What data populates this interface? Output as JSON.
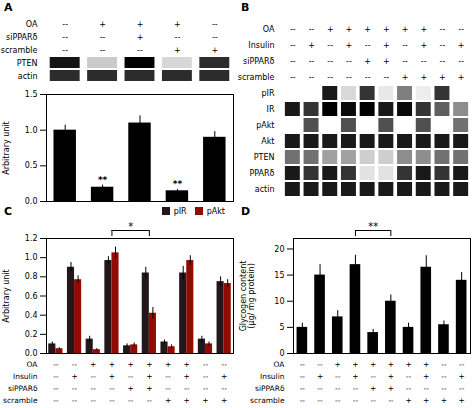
{
  "chart_data": [
    {
      "type": "blot",
      "title": "A",
      "conditions": [
        {
          "name": "OA",
          "values": [
            "--",
            "+",
            "+",
            "+",
            "--"
          ]
        },
        {
          "name": "siPPARδ",
          "values": [
            "--",
            "--",
            "+",
            "--",
            "--"
          ]
        },
        {
          "name": "scramble",
          "values": [
            "--",
            "--",
            "--",
            "+",
            "+"
          ]
        }
      ],
      "rows": [
        "PTEN",
        "actin"
      ],
      "cells": [
        [
          0.65,
          0.22,
          0.7,
          0.18,
          0.6
        ],
        [
          0.6,
          0.6,
          0.6,
          0.6,
          0.6
        ]
      ]
    },
    {
      "type": "bar",
      "categories": [
        null,
        null,
        null,
        null,
        null
      ],
      "values": [
        1.0,
        0.2,
        1.1,
        0.15,
        0.9
      ],
      "errors": [
        0.07,
        0.03,
        0.1,
        0.02,
        0.08
      ],
      "ylabel": "Arbitrary unit",
      "ylim": [
        0,
        1.5
      ],
      "yticks": [
        {
          "value": 0,
          "label": "0.0"
        },
        0.5,
        {
          "value": 1.0,
          "label": "1.0"
        },
        1.5
      ],
      "annotations": [
        {
          "index": 1,
          "text": "**"
        },
        {
          "index": 3,
          "text": "**"
        }
      ]
    },
    {
      "type": "blot",
      "title": "B",
      "conditions": [
        {
          "name": "OA",
          "values": [
            "--",
            "--",
            "+",
            "+",
            "+",
            "+",
            "+",
            "+",
            "--",
            "--"
          ]
        },
        {
          "name": "Insulin",
          "values": [
            "--",
            "+",
            "--",
            "+",
            "--",
            "+",
            "--",
            "+",
            "--",
            "+"
          ]
        },
        {
          "name": "siPPARδ",
          "values": [
            "--",
            "--",
            "--",
            "--",
            "+",
            "+",
            "--",
            "--",
            "--",
            "--"
          ]
        },
        {
          "name": "scramble",
          "values": [
            "--",
            "--",
            "--",
            "--",
            "--",
            "--",
            "+",
            "+",
            "+",
            "+"
          ]
        }
      ],
      "rows": [
        "pIR",
        "IR",
        "pAkt",
        "Akt",
        "PTEN",
        "PPARδ",
        "actin"
      ],
      "cells": [
        [
          0.0,
          0.0,
          0.55,
          0.15,
          0.5,
          0.1,
          0.35,
          0.08,
          0.5,
          0.0
        ],
        [
          0.55,
          0.5,
          0.6,
          0.58,
          0.6,
          0.55,
          0.58,
          0.5,
          0.42,
          0.32
        ],
        [
          0.0,
          0.45,
          0.0,
          0.45,
          0.0,
          0.45,
          0.0,
          0.45,
          0.0,
          0.38
        ],
        [
          0.55,
          0.55,
          0.55,
          0.55,
          0.55,
          0.55,
          0.55,
          0.55,
          0.55,
          0.55
        ],
        [
          0.38,
          0.38,
          0.28,
          0.28,
          0.18,
          0.18,
          0.32,
          0.32,
          0.38,
          0.38
        ],
        [
          0.55,
          0.5,
          0.55,
          0.5,
          0.12,
          0.12,
          0.5,
          0.55,
          0.5,
          0.55
        ],
        [
          0.55,
          0.55,
          0.55,
          0.55,
          0.55,
          0.55,
          0.55,
          0.55,
          0.55,
          0.55
        ]
      ]
    },
    {
      "type": "bar",
      "title": "C",
      "categories": [
        null,
        null,
        null,
        null,
        null,
        null,
        null,
        null,
        null,
        null
      ],
      "series": [
        {
          "name": "pIR",
          "values": [
            0.1,
            0.9,
            0.15,
            0.97,
            0.08,
            0.84,
            0.12,
            0.84,
            0.15,
            0.75
          ],
          "errors": [
            0.02,
            0.05,
            0.03,
            0.04,
            0.02,
            0.06,
            0.02,
            0.07,
            0.03,
            0.05
          ]
        },
        {
          "name": "pAkt",
          "values": [
            0.05,
            0.77,
            0.04,
            1.05,
            0.09,
            0.42,
            0.07,
            0.97,
            0.1,
            0.73
          ],
          "errors": [
            0.01,
            0.04,
            0.01,
            0.06,
            0.02,
            0.06,
            0.02,
            0.05,
            0.02,
            0.04
          ]
        }
      ],
      "ylabel": "Arbitrary unit",
      "ylim": [
        0,
        1.2
      ],
      "yticks": [
        {
          "value": 0.0,
          "label": "0.0"
        },
        0.2,
        0.4,
        0.6,
        0.8,
        {
          "value": 1.0,
          "label": "1.0"
        },
        1.2
      ],
      "legend": "upper right",
      "annotations": [
        {
          "from": 3,
          "to": 5,
          "text": "*"
        }
      ],
      "conditions": [
        {
          "name": "OA",
          "values": [
            "--",
            "--",
            "+",
            "+",
            "+",
            "+",
            "+",
            "+",
            "--",
            "--"
          ]
        },
        {
          "name": "Insulin",
          "values": [
            "--",
            "+",
            "--",
            "+",
            "--",
            "+",
            "--",
            "+",
            "--",
            "+"
          ]
        },
        {
          "name": "siPPARδ",
          "values": [
            "--",
            "--",
            "--",
            "--",
            "+",
            "+",
            "--",
            "--",
            "--",
            "--"
          ]
        },
        {
          "name": "scramble",
          "values": [
            "--",
            "--",
            "--",
            "--",
            "--",
            "--",
            "+",
            "+",
            "+",
            "+"
          ]
        }
      ]
    },
    {
      "type": "bar",
      "title": "D",
      "categories": [
        null,
        null,
        null,
        null,
        null,
        null,
        null,
        null,
        null,
        null
      ],
      "values": [
        5.0,
        15.0,
        7.0,
        17.0,
        4.0,
        10.0,
        5.0,
        16.5,
        5.5,
        14.0
      ],
      "errors": [
        0.8,
        2.0,
        1.2,
        1.8,
        0.6,
        1.2,
        0.8,
        2.2,
        0.7,
        1.5
      ],
      "ylabel": "Glycogen content\n(μg/ mg protein)",
      "ylim": [
        0,
        22
      ],
      "yticks": [
        0,
        5,
        10,
        15,
        20
      ],
      "annotations": [
        {
          "from": 3,
          "to": 5,
          "text": "**"
        }
      ],
      "conditions": [
        {
          "name": "OA",
          "values": [
            "--",
            "--",
            "+",
            "+",
            "+",
            "+",
            "+",
            "+",
            "--",
            "--"
          ]
        },
        {
          "name": "Insulin",
          "values": [
            "--",
            "+",
            "--",
            "+",
            "--",
            "+",
            "--",
            "+",
            "--",
            "+"
          ]
        },
        {
          "name": "siPPARδ",
          "values": [
            "--",
            "--",
            "--",
            "--",
            "+",
            "+",
            "--",
            "--",
            "--",
            "--"
          ]
        },
        {
          "name": "scramble",
          "values": [
            "--",
            "--",
            "--",
            "--",
            "--",
            "--",
            "+",
            "+",
            "+",
            "+"
          ]
        }
      ]
    }
  ]
}
